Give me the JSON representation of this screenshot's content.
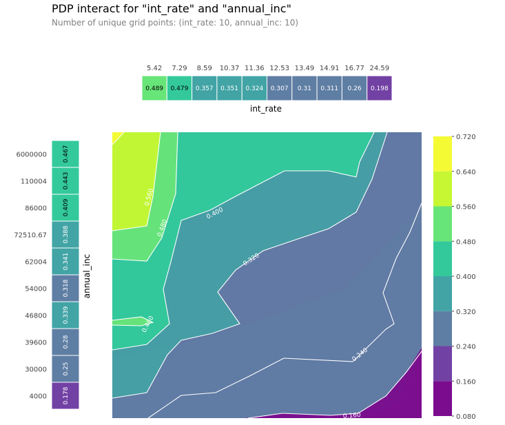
{
  "chart_data": {
    "type": "heatmap",
    "title": "PDP interact for \"int_rate\" and \"annual_inc\"",
    "subtitle": "Number of unique grid points: (int_rate: 10, annual_inc: 10)",
    "x_feature": "int_rate",
    "y_feature": "annual_inc",
    "top_strip": {
      "label": "int_rate",
      "ticks": [
        "5.42",
        "7.29",
        "8.59",
        "10.37",
        "11.36",
        "12.53",
        "13.49",
        "14.91",
        "16.77",
        "24.59"
      ],
      "values": [
        "0.489",
        "0.479",
        "0.357",
        "0.351",
        "0.324",
        "0.307",
        "0.31",
        "0.311",
        "0.26",
        "0.198"
      ]
    },
    "left_strip": {
      "label": "annual_inc",
      "ticks": [
        "6000000",
        "110004",
        "86000",
        "72510.67",
        "62004",
        "54000",
        "46800",
        "39600",
        "30000",
        "4000"
      ],
      "values": [
        "0.467",
        "0.443",
        "0.409",
        "0.388",
        "0.341",
        "0.318",
        "0.339",
        "0.28",
        "0.25",
        "0.178"
      ]
    },
    "colorbar": {
      "ticks": [
        "0.720",
        "0.640",
        "0.560",
        "0.480",
        "0.400",
        "0.320",
        "0.240",
        "0.160",
        "0.080"
      ],
      "levels": [
        0.08,
        0.16,
        0.24,
        0.32,
        0.4,
        0.48,
        0.56,
        0.64,
        0.72
      ],
      "colors": [
        "#7a0c8d",
        "#7241a4",
        "#5f7ea4",
        "#42a4a5",
        "#33c99b",
        "#68e578",
        "#c6f732",
        "#f4fb35"
      ]
    },
    "contour_labels": [
      "0.560",
      "0.480",
      "0.400",
      "0.320",
      "0.480",
      "0.240",
      "0.160"
    ]
  }
}
